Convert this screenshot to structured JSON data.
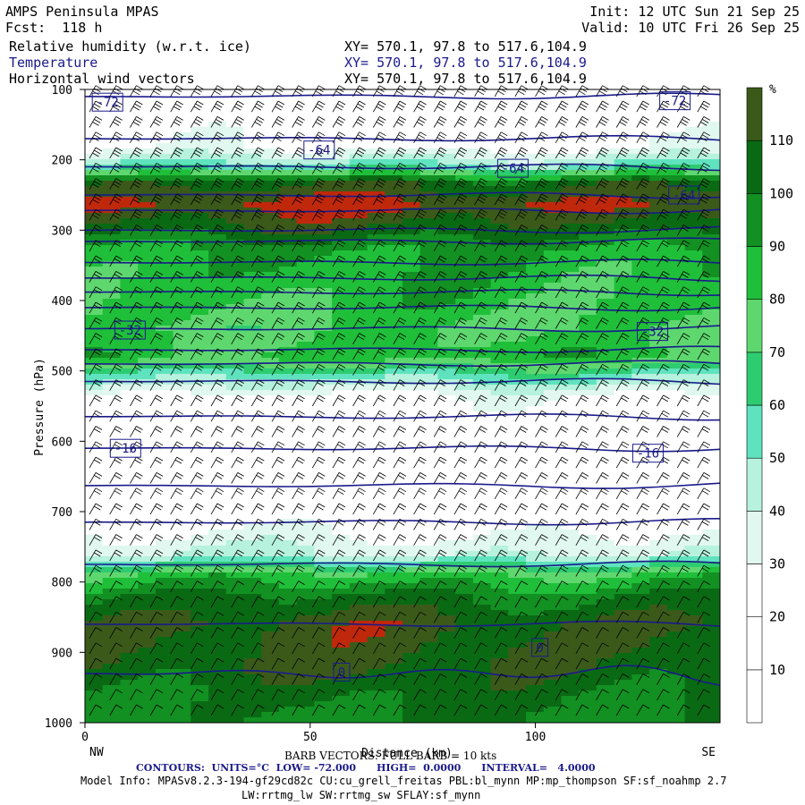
{
  "header": {
    "model": "AMPS Peninsula MPAS",
    "fcst": "Fcst:  118 h",
    "init": "Init: 12 UTC Sun 21 Sep 25",
    "valid": "Valid: 10 UTC Fri 26 Sep 25",
    "fields": [
      {
        "label": "Relative humidity (w.r.t. ice)",
        "xy": "XY= 570.1, 97.8 to 517.6,104.9"
      },
      {
        "label": "Temperature",
        "xy": "XY= 570.1, 97.8 to 517.6,104.9"
      },
      {
        "label": "Horizontal wind vectors",
        "xy": "XY= 570.1, 97.8 to 517.6,104.9"
      }
    ]
  },
  "chart_data": {
    "type": "heatmap",
    "title": "Relative humidity (w.r.t. ice)",
    "xlabel": "Distance (km)",
    "ylabel": "Pressure (hPa)",
    "xlim": [
      0,
      141
    ],
    "ylim": [
      1000,
      100
    ],
    "x_ticks": [
      0,
      50,
      100
    ],
    "y_ticks": [
      100,
      200,
      300,
      400,
      500,
      600,
      700,
      800,
      900,
      1000
    ],
    "x_end_labels": {
      "left": "NW",
      "right": "SE"
    },
    "colorbar": {
      "unit": "%",
      "levels": [
        10,
        20,
        30,
        40,
        50,
        60,
        70,
        80,
        90,
        100,
        110
      ],
      "colors": [
        "#ffffff",
        "#ffffff",
        "#ffffff",
        "#e0f8ef",
        "#b6f2dd",
        "#5fe3bf",
        "#2ecc71",
        "#5ed86e",
        "#1fbf3a",
        "#129022",
        "#0a6a14",
        "#3b5a1a",
        "#c0280c"
      ]
    },
    "rh_profile": [
      {
        "p": 100,
        "rh": 5
      },
      {
        "p": 180,
        "rh": 15
      },
      {
        "p": 210,
        "rh": 45
      },
      {
        "p": 230,
        "rh": 95
      },
      {
        "p": 250,
        "rh": 105
      },
      {
        "p": 265,
        "rh": 112
      },
      {
        "p": 290,
        "rh": 100
      },
      {
        "p": 330,
        "rh": 80
      },
      {
        "p": 380,
        "rh": 75
      },
      {
        "p": 440,
        "rh": 68
      },
      {
        "p": 480,
        "rh": 75
      },
      {
        "p": 510,
        "rh": 42
      },
      {
        "p": 540,
        "rh": 15
      },
      {
        "p": 600,
        "rh": 8
      },
      {
        "p": 700,
        "rh": 8
      },
      {
        "p": 760,
        "rh": 30
      },
      {
        "p": 790,
        "rh": 72
      },
      {
        "p": 820,
        "rh": 90
      },
      {
        "p": 860,
        "rh": 103
      },
      {
        "p": 920,
        "rh": 100
      },
      {
        "p": 960,
        "rh": 92
      },
      {
        "p": 1000,
        "rh": 88
      }
    ],
    "temperature_contours": {
      "units": "°C",
      "low": "-72.000",
      "high": "0.0000",
      "interval": "4.0000",
      "labels": [
        {
          "value": "-72",
          "x": 5,
          "p": 118
        },
        {
          "value": "-72",
          "x": 131,
          "p": 116
        },
        {
          "value": "-64",
          "x": 52,
          "p": 186
        },
        {
          "value": "-64",
          "x": 95,
          "p": 212
        },
        {
          "value": "-64",
          "x": 133,
          "p": 250
        },
        {
          "value": "-32",
          "x": 10,
          "p": 442
        },
        {
          "value": "-32",
          "x": 126,
          "p": 444
        },
        {
          "value": "-16",
          "x": 9,
          "p": 610
        },
        {
          "value": "-16",
          "x": 125,
          "p": 617
        },
        {
          "value": "0",
          "x": 57,
          "p": 928
        },
        {
          "value": "0",
          "x": 101,
          "p": 893
        }
      ],
      "levels_p": [
        110,
        170,
        210,
        250,
        272,
        300,
        316,
        346,
        368,
        388,
        410,
        440,
        470,
        490,
        515,
        565,
        610,
        663,
        715,
        775,
        860,
        930
      ]
    },
    "wind_barbs": {
      "scale": "BARB VECTORS: FULL BARB = 10 kts"
    }
  },
  "footer": {
    "barb_label": "BARB VECTORS: FULL BARB = 10 kts",
    "contours_label": "CONTOURS:  UNITS=°C  LOW= -72.000      HIGH=  0.0000      INTERVAL=   4.0000",
    "model_info": "Model Info: MPASv8.2.3-194-gf29cd82c CU:cu_grell_freitas PBL:bl_mynn MP:mp_thompson SF:sf_noahmp 2.7",
    "model_info2": "LW:rrtmg_lw SW:rrtmg_sw SFLAY:sf_mynn"
  }
}
